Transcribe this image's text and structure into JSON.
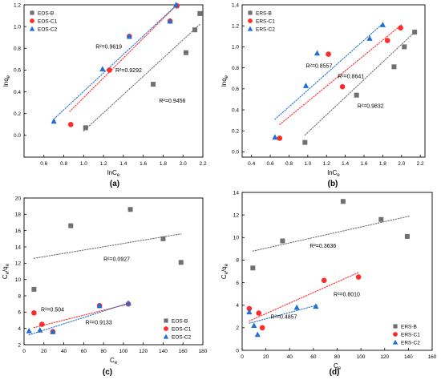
{
  "colors": {
    "series_1": "#707070",
    "series_2": "#ff2a2a",
    "series_3": "#1f6fd6"
  },
  "chart_data": [
    {
      "panel_label": "(a)",
      "type": "scatter",
      "xlabel": "lnC",
      "xlabel_sub": "e",
      "ylabel": "lnq",
      "ylabel_sub": "e",
      "xlim": [
        0.4,
        2.2
      ],
      "ylim": [
        -0.2,
        1.2
      ],
      "xticks": [
        0.6,
        0.8,
        1.0,
        1.2,
        1.4,
        1.6,
        1.8,
        2.0,
        2.2
      ],
      "yticks": [
        0.0,
        0.2,
        0.4,
        0.6,
        0.8,
        1.0,
        1.2
      ],
      "tick_decimals": 1,
      "legend_position": "top-left",
      "series": [
        {
          "name": "EOS-B",
          "marker": "square",
          "color": "#707070",
          "x": [
            1.02,
            1.7,
            2.03,
            2.12,
            2.17
          ],
          "y": [
            0.07,
            0.47,
            0.76,
            0.97,
            1.12
          ],
          "fit": {
            "x": [
              1.0,
              2.17
            ],
            "y": [
              0.04,
              1.02
            ]
          }
        },
        {
          "name": "EOS-C1",
          "marker": "circle",
          "color": "#ff2a2a",
          "x": [
            0.87,
            1.26,
            1.46,
            1.87,
            1.94
          ],
          "y": [
            0.1,
            0.6,
            0.91,
            1.05,
            1.19
          ],
          "fit": {
            "x": [
              0.86,
              1.95
            ],
            "y": [
              0.22,
              1.21
            ]
          }
        },
        {
          "name": "EOS-C2",
          "marker": "triangle",
          "color": "#1f6fd6",
          "x": [
            0.7,
            1.19,
            1.46,
            1.87,
            1.93
          ],
          "y": [
            0.13,
            0.61,
            0.91,
            1.05,
            1.2
          ],
          "fit": {
            "x": [
              0.7,
              1.95
            ],
            "y": [
              0.15,
              1.21
            ]
          }
        }
      ],
      "annotations": [
        {
          "text": "R²=0.9619",
          "x": 1.12,
          "y": 0.8
        },
        {
          "text": "R²=0.9292",
          "x": 1.32,
          "y": 0.58
        },
        {
          "text": "R²=0.9456",
          "x": 1.76,
          "y": 0.3
        }
      ]
    },
    {
      "panel_label": "(b)",
      "type": "scatter",
      "xlabel": "lnC",
      "xlabel_sub": "e",
      "ylabel": "lnq",
      "ylabel_sub": "e",
      "xlim": [
        0.3,
        2.25
      ],
      "ylim": [
        -0.05,
        1.4
      ],
      "xticks": [
        0.4,
        0.6,
        0.8,
        1.0,
        1.2,
        1.4,
        1.6,
        1.8,
        2.0,
        2.2
      ],
      "yticks": [
        0.0,
        0.2,
        0.4,
        0.6,
        0.8,
        1.0,
        1.2,
        1.4
      ],
      "tick_decimals": 1,
      "legend_position": "top-left",
      "series": [
        {
          "name": "ERS-B",
          "marker": "square",
          "color": "#707070",
          "x": [
            0.97,
            1.52,
            1.92,
            2.03,
            2.14
          ],
          "y": [
            0.09,
            0.54,
            0.81,
            1.0,
            1.14
          ],
          "fit": {
            "x": [
              0.97,
              2.14
            ],
            "y": [
              0.16,
              1.14
            ]
          }
        },
        {
          "name": "ERS-C1",
          "marker": "circle",
          "color": "#ff2a2a",
          "x": [
            0.7,
            1.22,
            1.37,
            1.85,
            1.99
          ],
          "y": [
            0.13,
            0.93,
            0.62,
            1.06,
            1.18
          ],
          "fit": {
            "x": [
              0.7,
              2.0
            ],
            "y": [
              0.26,
              1.21
            ]
          }
        },
        {
          "name": "ERS-C2",
          "marker": "triangle",
          "color": "#1f6fd6",
          "x": [
            0.65,
            0.98,
            1.1,
            1.66,
            1.8
          ],
          "y": [
            0.14,
            0.63,
            0.94,
            1.08,
            1.21
          ],
          "fit": {
            "x": [
              0.65,
              1.81
            ],
            "y": [
              0.31,
              1.23
            ]
          }
        }
      ],
      "annotations": [
        {
          "text": "R²=0.8557",
          "x": 0.98,
          "y": 0.8
        },
        {
          "text": "R²=0.8641",
          "x": 1.32,
          "y": 0.7
        },
        {
          "text": "R²=0.9832",
          "x": 1.53,
          "y": 0.42
        }
      ]
    },
    {
      "panel_label": "(c)",
      "type": "scatter",
      "xlabel": "C",
      "xlabel_sub": "e",
      "ylabel": "C",
      "ylabel_sub": "e",
      "ylabel_tail": "/q",
      "ylabel_tail_sub": "e",
      "xlim": [
        0,
        180
      ],
      "ylim": [
        2,
        20
      ],
      "xticks": [
        0,
        20,
        40,
        60,
        80,
        100,
        120,
        140,
        160,
        180
      ],
      "yticks": [
        2,
        4,
        6,
        8,
        10,
        12,
        14,
        16,
        18,
        20
      ],
      "tick_decimals": 0,
      "legend_position": "bottom-right",
      "series": [
        {
          "name": "EOS-B",
          "marker": "square",
          "color": "#707070",
          "x": [
            10,
            47,
            107,
            140,
            158
          ],
          "y": [
            8.8,
            16.6,
            18.6,
            15.0,
            12.1
          ],
          "fit": {
            "x": [
              10,
              158
            ],
            "y": [
              12.6,
              15.6
            ]
          }
        },
        {
          "name": "EOS-C1",
          "marker": "circle",
          "color": "#ff2a2a",
          "x": [
            10,
            18,
            29,
            76,
            105
          ],
          "y": [
            5.9,
            4.5,
            3.6,
            6.8,
            7.0
          ],
          "fit": {
            "x": [
              10,
              105
            ],
            "y": [
              4.1,
              7.0
            ]
          }
        },
        {
          "name": "EOS-C2",
          "marker": "triangle",
          "color": "#1f6fd6",
          "x": [
            5,
            16,
            29,
            76,
            105
          ],
          "y": [
            3.7,
            3.8,
            3.6,
            6.8,
            7.1
          ],
          "fit": {
            "x": [
              5,
              105
            ],
            "y": [
              3.2,
              7.1
            ]
          }
        }
      ],
      "annotations": [
        {
          "text": "R²=0.0927",
          "x": 80,
          "y": 12.3
        },
        {
          "text": "R²=0.504",
          "x": 17,
          "y": 6.1
        },
        {
          "text": "R²=0.9133",
          "x": 62,
          "y": 4.5
        }
      ]
    },
    {
      "panel_label": "(d)",
      "type": "scatter",
      "xlabel": "C",
      "xlabel_sub": "e",
      "ylabel": "C",
      "ylabel_sub": "e",
      "ylabel_tail": "/q",
      "ylabel_tail_sub": "e",
      "xlim": [
        0,
        160
      ],
      "ylim": [
        0,
        14
      ],
      "xticks": [
        0,
        20,
        40,
        60,
        80,
        100,
        120,
        140,
        160
      ],
      "yticks": [
        0,
        2,
        4,
        6,
        8,
        10,
        12,
        14
      ],
      "tick_decimals": 0,
      "legend_position": "bottom-right",
      "series": [
        {
          "name": "ERS-B",
          "marker": "square",
          "color": "#707070",
          "x": [
            9,
            34,
            85,
            117,
            139
          ],
          "y": [
            7.3,
            9.7,
            13.2,
            11.6,
            10.1
          ],
          "fit": {
            "x": [
              9,
              141
            ],
            "y": [
              8.8,
              11.9
            ]
          }
        },
        {
          "name": "ERS-C1",
          "marker": "circle",
          "color": "#ff2a2a",
          "x": [
            6,
            14,
            17,
            69,
            98
          ],
          "y": [
            3.7,
            3.3,
            2.0,
            6.2,
            6.5
          ],
          "fit": {
            "x": [
              6,
              98
            ],
            "y": [
              2.6,
              6.9
            ]
          }
        },
        {
          "name": "ERS-C2",
          "marker": "triangle",
          "color": "#1f6fd6",
          "x": [
            6,
            10,
            13,
            46,
            62
          ],
          "y": [
            3.4,
            2.2,
            1.4,
            3.8,
            3.9
          ],
          "fit": {
            "x": [
              6,
              63
            ],
            "y": [
              2.4,
              4.0
            ]
          }
        }
      ],
      "annotations": [
        {
          "text": "R²=0.3636",
          "x": 57,
          "y": 9.1
        },
        {
          "text": "R²=0.8010",
          "x": 77,
          "y": 4.8
        },
        {
          "text": "R²=0.4857",
          "x": 24,
          "y": 2.8
        }
      ]
    }
  ]
}
